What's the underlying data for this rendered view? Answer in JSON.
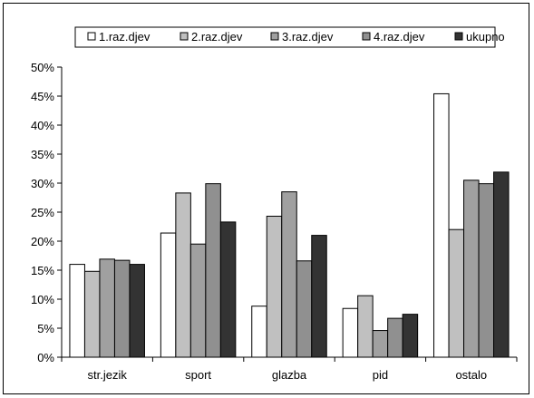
{
  "chart_data": {
    "type": "bar",
    "title": "",
    "xlabel": "",
    "ylabel": "",
    "ylim": [
      0,
      50
    ],
    "y_tick_step": 5,
    "y_tick_format": "percent",
    "grid": false,
    "legend_position": "top",
    "categories": [
      "str.jezik",
      "sport",
      "glazba",
      "pid",
      "ostalo"
    ],
    "series": [
      {
        "name": "1.raz.djev",
        "color": "#ffffff",
        "values": [
          16,
          21.4,
          8.8,
          8.4,
          45.4
        ]
      },
      {
        "name": "2.raz.djev",
        "color": "#c0c0c0",
        "values": [
          14.8,
          28.3,
          24.3,
          10.6,
          22
        ]
      },
      {
        "name": "3.raz.djev",
        "color": "#a0a0a0",
        "values": [
          16.9,
          19.5,
          28.5,
          4.6,
          30.5
        ]
      },
      {
        "name": "4.raz.djev",
        "color": "#909090",
        "values": [
          16.7,
          29.9,
          16.6,
          6.7,
          29.9
        ]
      },
      {
        "name": "ukupno",
        "color": "#333333",
        "values": [
          16,
          23.3,
          21,
          7.4,
          31.9
        ]
      }
    ]
  }
}
